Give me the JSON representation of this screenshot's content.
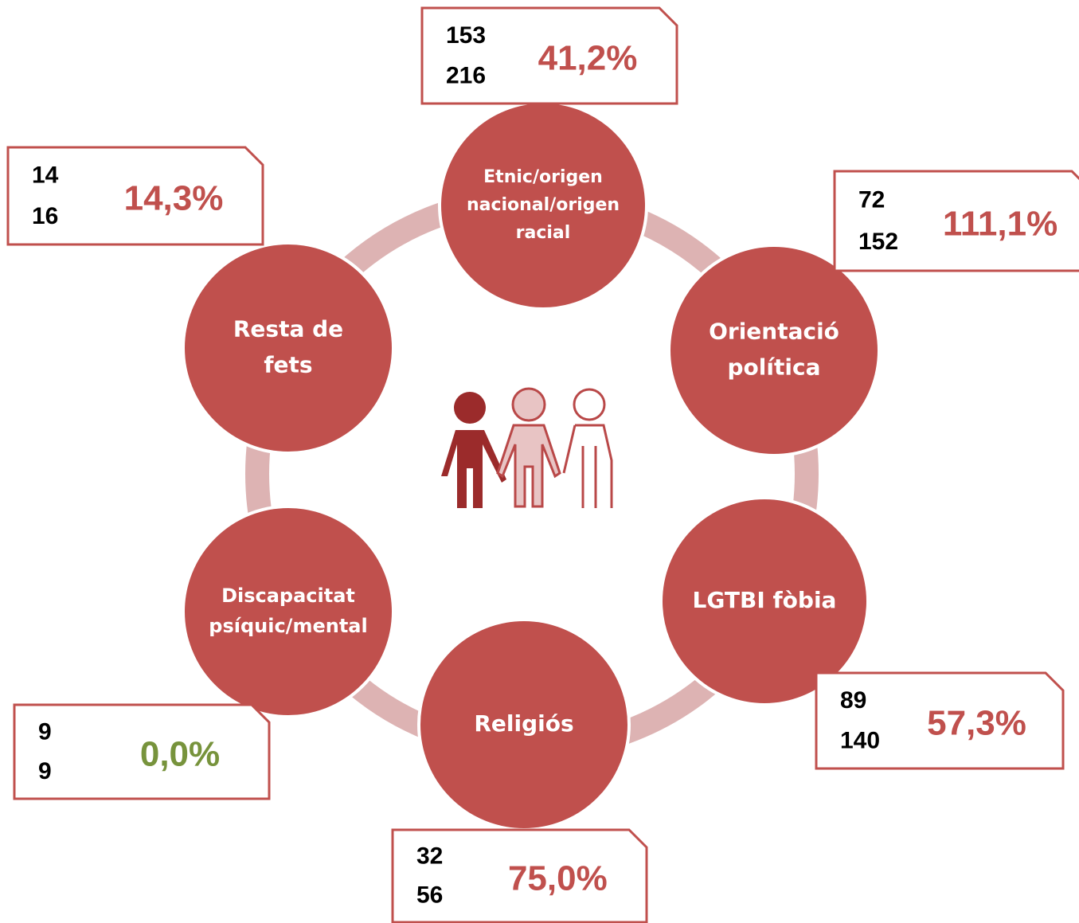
{
  "nodes": [
    {
      "label": [
        "Etnic/origen",
        "nacional/origen",
        "racial"
      ],
      "top": "153",
      "bottom": "216",
      "percent": "41,2%",
      "color": "#c0504d"
    },
    {
      "label": [
        "Orientació",
        "política"
      ],
      "top": "72",
      "bottom": "152",
      "percent": "111,1%",
      "color": "#c0504d"
    },
    {
      "label": [
        "LGTBI fòbia"
      ],
      "top": "89",
      "bottom": "140",
      "percent": "57,3%",
      "color": "#c0504d"
    },
    {
      "label": [
        "Religiós"
      ],
      "top": "32",
      "bottom": "56",
      "percent": "75,0%",
      "color": "#c0504d"
    },
    {
      "label": [
        "Discapacitat",
        "psíquic/mental"
      ],
      "top": "9",
      "bottom": "9",
      "percent": "0,0%",
      "color": "#77933c"
    },
    {
      "label": [
        "Resta de",
        "fets"
      ],
      "top": "14",
      "bottom": "16",
      "percent": "14,3%",
      "color": "#c0504d"
    }
  ]
}
